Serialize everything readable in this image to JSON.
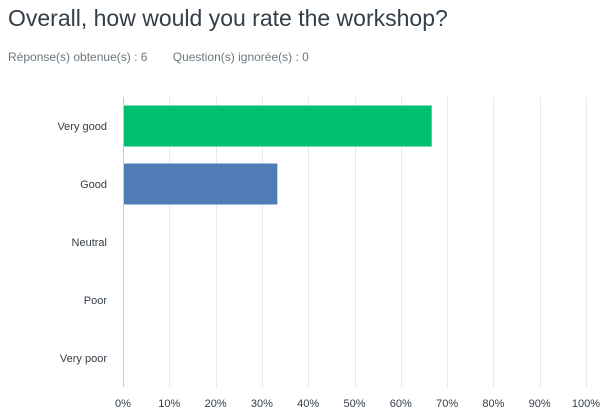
{
  "question": {
    "title": "Overall, how would you rate the workshop?",
    "answered": "Réponse(s) obtenue(s) : 6",
    "skipped": "Question(s) ignorée(s) : 0"
  },
  "chart_data": {
    "type": "bar",
    "orientation": "horizontal",
    "categories": [
      "Very good",
      "Good",
      "Neutral",
      "Poor",
      "Very poor"
    ],
    "values": [
      66.67,
      33.33,
      0,
      0,
      0
    ],
    "bar_colors": [
      "#00bf6f",
      "#507cb6",
      "#507cb6",
      "#507cb6",
      "#507cb6"
    ],
    "xlim": [
      0,
      100
    ],
    "x_ticks": [
      0,
      10,
      20,
      30,
      40,
      50,
      60,
      70,
      80,
      90,
      100
    ],
    "x_tick_labels": [
      "0%",
      "10%",
      "20%",
      "30%",
      "40%",
      "50%",
      "60%",
      "70%",
      "80%",
      "90%",
      "100%"
    ],
    "grid": true
  }
}
